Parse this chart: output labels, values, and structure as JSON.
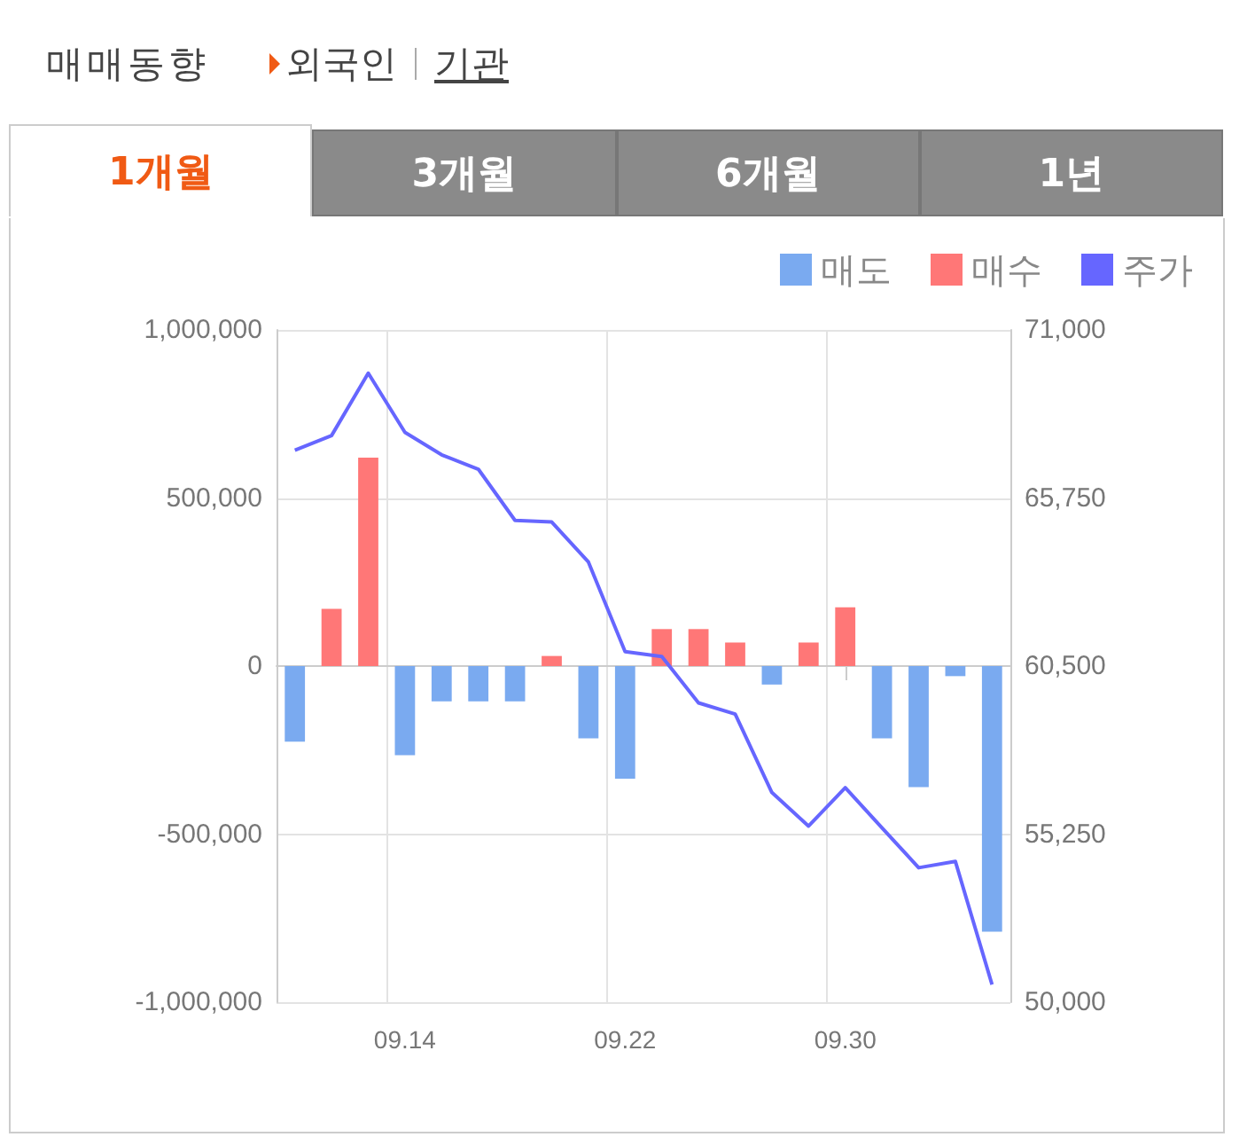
{
  "chart_data": {
    "type": "bar",
    "title": "매매동향",
    "annotations": [
      "외국인",
      "기관",
      "1개월",
      "3개월",
      "6개월",
      "1년"
    ],
    "categories": [
      null,
      null,
      null,
      "09.14",
      null,
      null,
      null,
      null,
      null,
      "09.22",
      null,
      null,
      null,
      null,
      null,
      "09.30",
      null,
      null,
      null,
      null
    ],
    "stacked": true,
    "series": [
      {
        "name": "매도",
        "color": "#7aaaf0",
        "values": [
          -225000,
          0,
          0,
          -265000,
          -105000,
          -105000,
          -105000,
          0,
          -215000,
          -335000,
          0,
          0,
          0,
          -55000,
          0,
          0,
          -215000,
          -360000,
          -30000,
          -790000
        ]
      },
      {
        "name": "매수",
        "color": "#ff7777",
        "values": [
          0,
          170000,
          620000,
          0,
          0,
          0,
          0,
          30000,
          0,
          0,
          110000,
          110000,
          70000,
          0,
          70000,
          175000,
          0,
          0,
          0,
          0
        ]
      },
      {
        "name": "주가",
        "type": "line",
        "axis": "y2",
        "color": "#6666ff",
        "values": [
          67240,
          67700,
          69650,
          67800,
          67100,
          66650,
          65050,
          65000,
          63750,
          60950,
          60800,
          59350,
          59000,
          56550,
          55500,
          56700,
          55450,
          54200,
          54400,
          50550
        ]
      }
    ],
    "ylim": [
      -1000000,
      1000000
    ],
    "yticks": [
      {
        "value": -1000000,
        "label": "-1,000,000"
      },
      {
        "value": -500000,
        "label": "-500,000"
      },
      0,
      {
        "value": 500000,
        "label": "500,000"
      },
      {
        "value": 1000000,
        "label": "1,000,000"
      }
    ],
    "y2lim": [
      50000,
      71000
    ],
    "y2ticks": [
      {
        "value": 50000,
        "label": "50,000"
      },
      {
        "value": 55250,
        "label": "55,250"
      },
      {
        "value": 60500,
        "label": "60,500"
      },
      {
        "value": 65750,
        "label": "65,750"
      },
      {
        "value": 71000,
        "label": "71,000"
      }
    ],
    "grid": true,
    "legend": "top right",
    "marker": "none"
  }
}
